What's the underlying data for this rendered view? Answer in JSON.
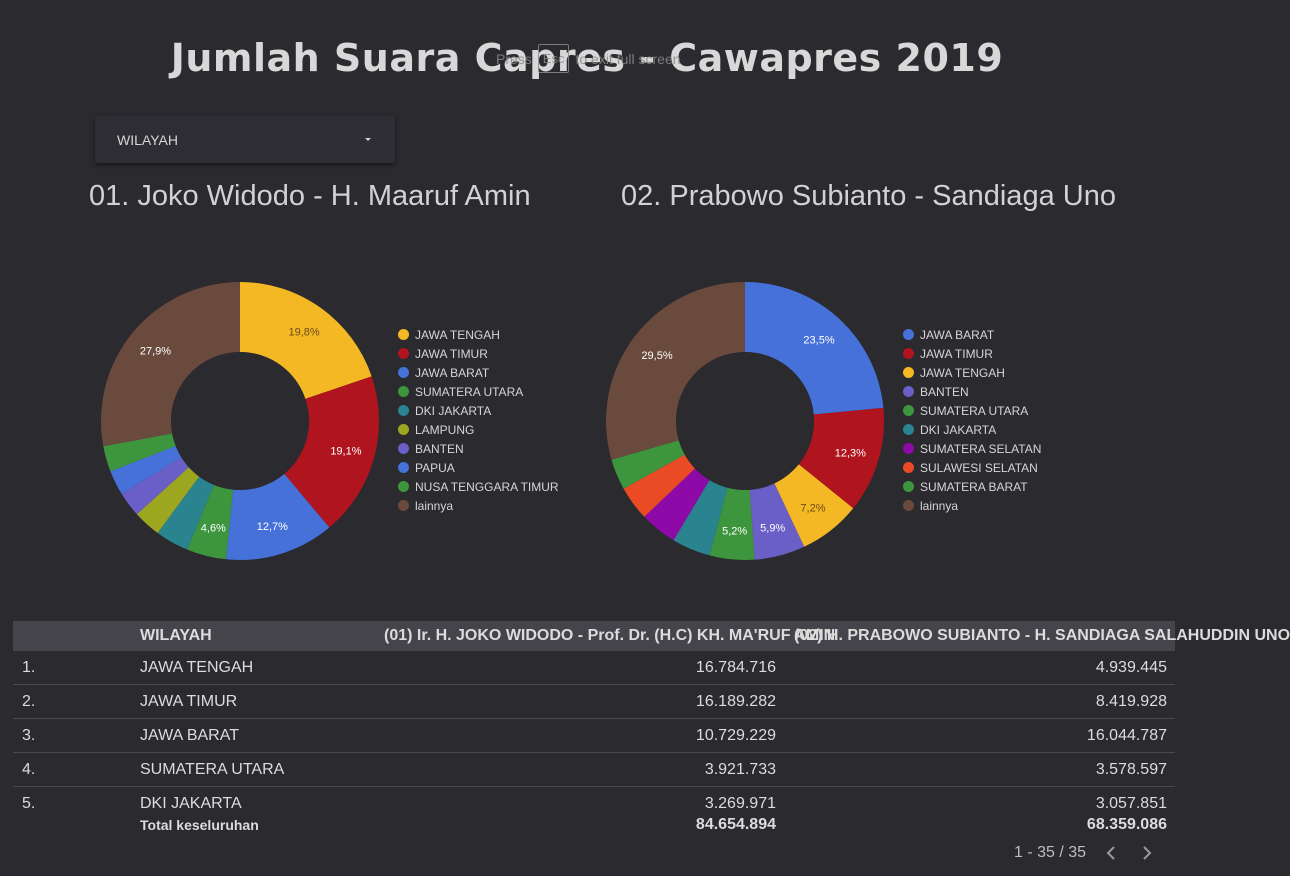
{
  "page": {
    "title": "Jumlah Suara Capres - Cawapres 2019",
    "fullscreen_hint": {
      "before": "Press",
      "key": "Esc",
      "after": "to exit full screen"
    }
  },
  "filter": {
    "label": "WILAYAH"
  },
  "colors": {
    "background": "#2b2a2f",
    "yellow": "#f4b824",
    "red": "#b0141f",
    "blue": "#4571d8",
    "green": "#3d963d",
    "teal": "#2a8490",
    "olive": "#9da61f",
    "purple": "#6a5fc6",
    "magenta": "#8d0aa9",
    "orange": "#ea4b25",
    "brown": "#6b4a3e"
  },
  "chart_data": [
    {
      "type": "pie",
      "title": "01. Joko Widodo - H. Maaruf Amin",
      "legend_placement": "right",
      "slices": [
        {
          "label": "JAWA TENGAH",
          "value": 19.8,
          "display": "19,8%",
          "color": "#f4b824"
        },
        {
          "label": "JAWA TIMUR",
          "value": 19.1,
          "display": "19,1%",
          "color": "#b0141f"
        },
        {
          "label": "JAWA BARAT",
          "value": 12.7,
          "display": "12,7%",
          "color": "#4571d8"
        },
        {
          "label": "SUMATERA UTARA",
          "value": 4.6,
          "display": "4,6%",
          "color": "#3d963d"
        },
        {
          "label": "DKI JAKARTA",
          "value": 3.9,
          "display": "",
          "color": "#2a8490"
        },
        {
          "label": "LAMPUNG",
          "value": 3.2,
          "display": "",
          "color": "#9da61f"
        },
        {
          "label": "BANTEN",
          "value": 2.9,
          "display": "",
          "color": "#6a5fc6"
        },
        {
          "label": "PAPUA",
          "value": 2.9,
          "display": "",
          "color": "#4571d8"
        },
        {
          "label": "NUSA TENGGARA TIMUR",
          "value": 3.0,
          "display": "",
          "color": "#3d963d"
        },
        {
          "label": "lainnya",
          "value": 27.9,
          "display": "27,9%",
          "color": "#6b4a3e"
        }
      ]
    },
    {
      "type": "pie",
      "title": "02. Prabowo Subianto - Sandiaga Uno",
      "legend_placement": "right",
      "slices": [
        {
          "label": "JAWA BARAT",
          "value": 23.5,
          "display": "23,5%",
          "color": "#4571d8"
        },
        {
          "label": "JAWA TIMUR",
          "value": 12.3,
          "display": "12,3%",
          "color": "#b0141f"
        },
        {
          "label": "JAWA TENGAH",
          "value": 7.2,
          "display": "7,2%",
          "color": "#f4b824"
        },
        {
          "label": "BANTEN",
          "value": 5.9,
          "display": "5,9%",
          "color": "#6a5fc6"
        },
        {
          "label": "SUMATERA UTARA",
          "value": 5.2,
          "display": "5,2%",
          "color": "#3d963d"
        },
        {
          "label": "DKI JAKARTA",
          "value": 4.5,
          "display": "",
          "color": "#2a8490"
        },
        {
          "label": "SUMATERA SELATAN",
          "value": 4.3,
          "display": "",
          "color": "#8d0aa9"
        },
        {
          "label": "SULAWESI SELATAN",
          "value": 4.0,
          "display": "",
          "color": "#ea4b25"
        },
        {
          "label": "SUMATERA BARAT",
          "value": 3.6,
          "display": "",
          "color": "#3d963d"
        },
        {
          "label": "lainnya",
          "value": 29.5,
          "display": "29,5%",
          "color": "#6b4a3e"
        }
      ]
    },
    {
      "type": "table",
      "columns": [
        "",
        "WILAYAH",
        "(01) Ir. H. JOKO WIDODO - Prof. Dr. (H.C) KH. MA'RUF AMIN",
        "(02) H. PRABOWO SUBIANTO - H. SANDIAGA SALAHUDDIN UNO"
      ],
      "rows": [
        [
          "1.",
          "JAWA TENGAH",
          "16.784.716",
          "4.939.445"
        ],
        [
          "2.",
          "JAWA TIMUR",
          "16.189.282",
          "8.419.928"
        ],
        [
          "3.",
          "JAWA BARAT",
          "10.729.229",
          "16.044.787"
        ],
        [
          "4.",
          "SUMATERA UTARA",
          "3.921.733",
          "3.578.597"
        ],
        [
          "5.",
          "DKI JAKARTA",
          "3.269.971",
          "3.057.851"
        ]
      ],
      "total": {
        "label": "Total keseluruhan",
        "v1": "84.654.894",
        "v2": "68.359.086"
      },
      "pagination": "1 - 35 / 35"
    }
  ]
}
